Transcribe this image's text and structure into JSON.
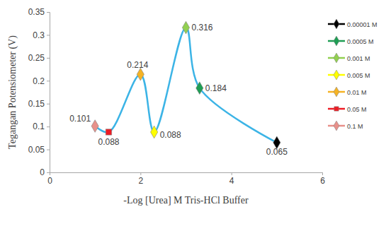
{
  "chart_data": {
    "type": "scatter",
    "x_label": "-Log [Urea] M Tris-HCl Buffer",
    "y_label": "Tegangan Potensiometer (V)",
    "xlim": [
      0,
      6
    ],
    "xticks": [
      0,
      2,
      4,
      6
    ],
    "ylim": [
      0,
      0.35
    ],
    "yticks": [
      0,
      0.05,
      0.1,
      0.15,
      0.2,
      0.25,
      0.3,
      0.35
    ],
    "grid": false,
    "legend": "right",
    "series": [
      {
        "name": "0.00001 M",
        "type": "scatter",
        "color": "#000000",
        "marker": "diamond",
        "data_labels": true,
        "x": [
          5
        ],
        "values": [
          0.065
        ]
      },
      {
        "name": "0.0005 M",
        "type": "scatter",
        "color": "#1e9e54",
        "marker": "diamond",
        "data_labels": true,
        "x": [
          3.301
        ],
        "values": [
          0.184
        ]
      },
      {
        "name": "0.001 M",
        "type": "scatter",
        "color": "#92d050",
        "marker": "diamond",
        "data_labels": true,
        "x": [
          3
        ],
        "values": [
          0.316
        ]
      },
      {
        "name": "0.005 M",
        "type": "scatter",
        "color": "#ffff00",
        "marker": "diamond",
        "data_labels": true,
        "x": [
          2.301
        ],
        "values": [
          0.088
        ]
      },
      {
        "name": "0.01 M",
        "type": "scatter",
        "color": "#f5b324",
        "marker": "diamond",
        "data_labels": true,
        "x": [
          2
        ],
        "values": [
          0.214
        ]
      },
      {
        "name": "0.05 M",
        "type": "scatter",
        "color": "#ee1c25",
        "marker": "square",
        "data_labels": true,
        "x": [
          1.301
        ],
        "values": [
          0.088
        ]
      },
      {
        "name": "0.1 M",
        "type": "scatter",
        "color": "#e8908a",
        "marker": "diamond",
        "data_labels": true,
        "x": [
          1
        ],
        "values": [
          0.101
        ]
      },
      {
        "type": "line",
        "color": "#3cb4e6",
        "line_style": "smooth",
        "x": [
          1,
          1.301,
          2,
          2.301,
          3,
          3.301,
          5
        ],
        "values": [
          0.101,
          0.088,
          0.214,
          0.088,
          0.316,
          0.184,
          0.065
        ]
      }
    ]
  }
}
